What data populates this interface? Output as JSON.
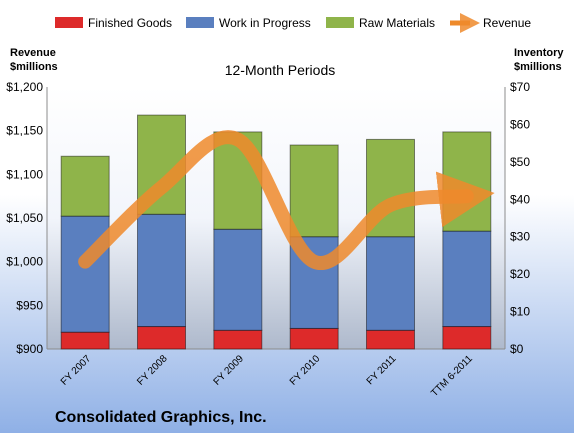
{
  "chart_data": {
    "type": "bar",
    "subtitle": "12-Month Periods",
    "company": "Consolidated Graphics, Inc.",
    "left_axis_title": [
      "Revenue",
      "$millions"
    ],
    "right_axis_title": [
      "Inventory",
      "$millions"
    ],
    "left_ticks": [
      "$900",
      "$950",
      "$1,000",
      "$1,050",
      "$1,100",
      "$1,150",
      "$1,200"
    ],
    "right_ticks": [
      "$0",
      "$10",
      "$20",
      "$30",
      "$40",
      "$50",
      "$60",
      "$70"
    ],
    "left_ylim": [
      900,
      1200
    ],
    "right_ylim": [
      0,
      70
    ],
    "categories": [
      "FY 2007",
      "FY 2008",
      "FY 2009",
      "FY 2010",
      "FY 2011",
      "TTM 6-2011"
    ],
    "series": [
      {
        "name": "Finished Goods",
        "color": "#dd2a2a",
        "axis": "right",
        "stack": true,
        "values": [
          4.5,
          6.0,
          5.0,
          5.5,
          5.0,
          6.0
        ]
      },
      {
        "name": "Work in Progress",
        "color": "#5a7fbf",
        "axis": "right",
        "stack": true,
        "values": [
          31.0,
          30.0,
          27.0,
          24.5,
          25.0,
          25.5
        ]
      },
      {
        "name": "Raw Materials",
        "color": "#8fb44a",
        "axis": "right",
        "stack": true,
        "values": [
          16.0,
          26.5,
          26.0,
          24.5,
          26.0,
          26.5
        ]
      },
      {
        "name": "Revenue",
        "color": "#ee8a2b",
        "axis": "left",
        "kind": "line",
        "values": [
          1000,
          1085,
          1140,
          1000,
          1065,
          1075
        ]
      }
    ],
    "legend_position": "top",
    "grid": false
  }
}
